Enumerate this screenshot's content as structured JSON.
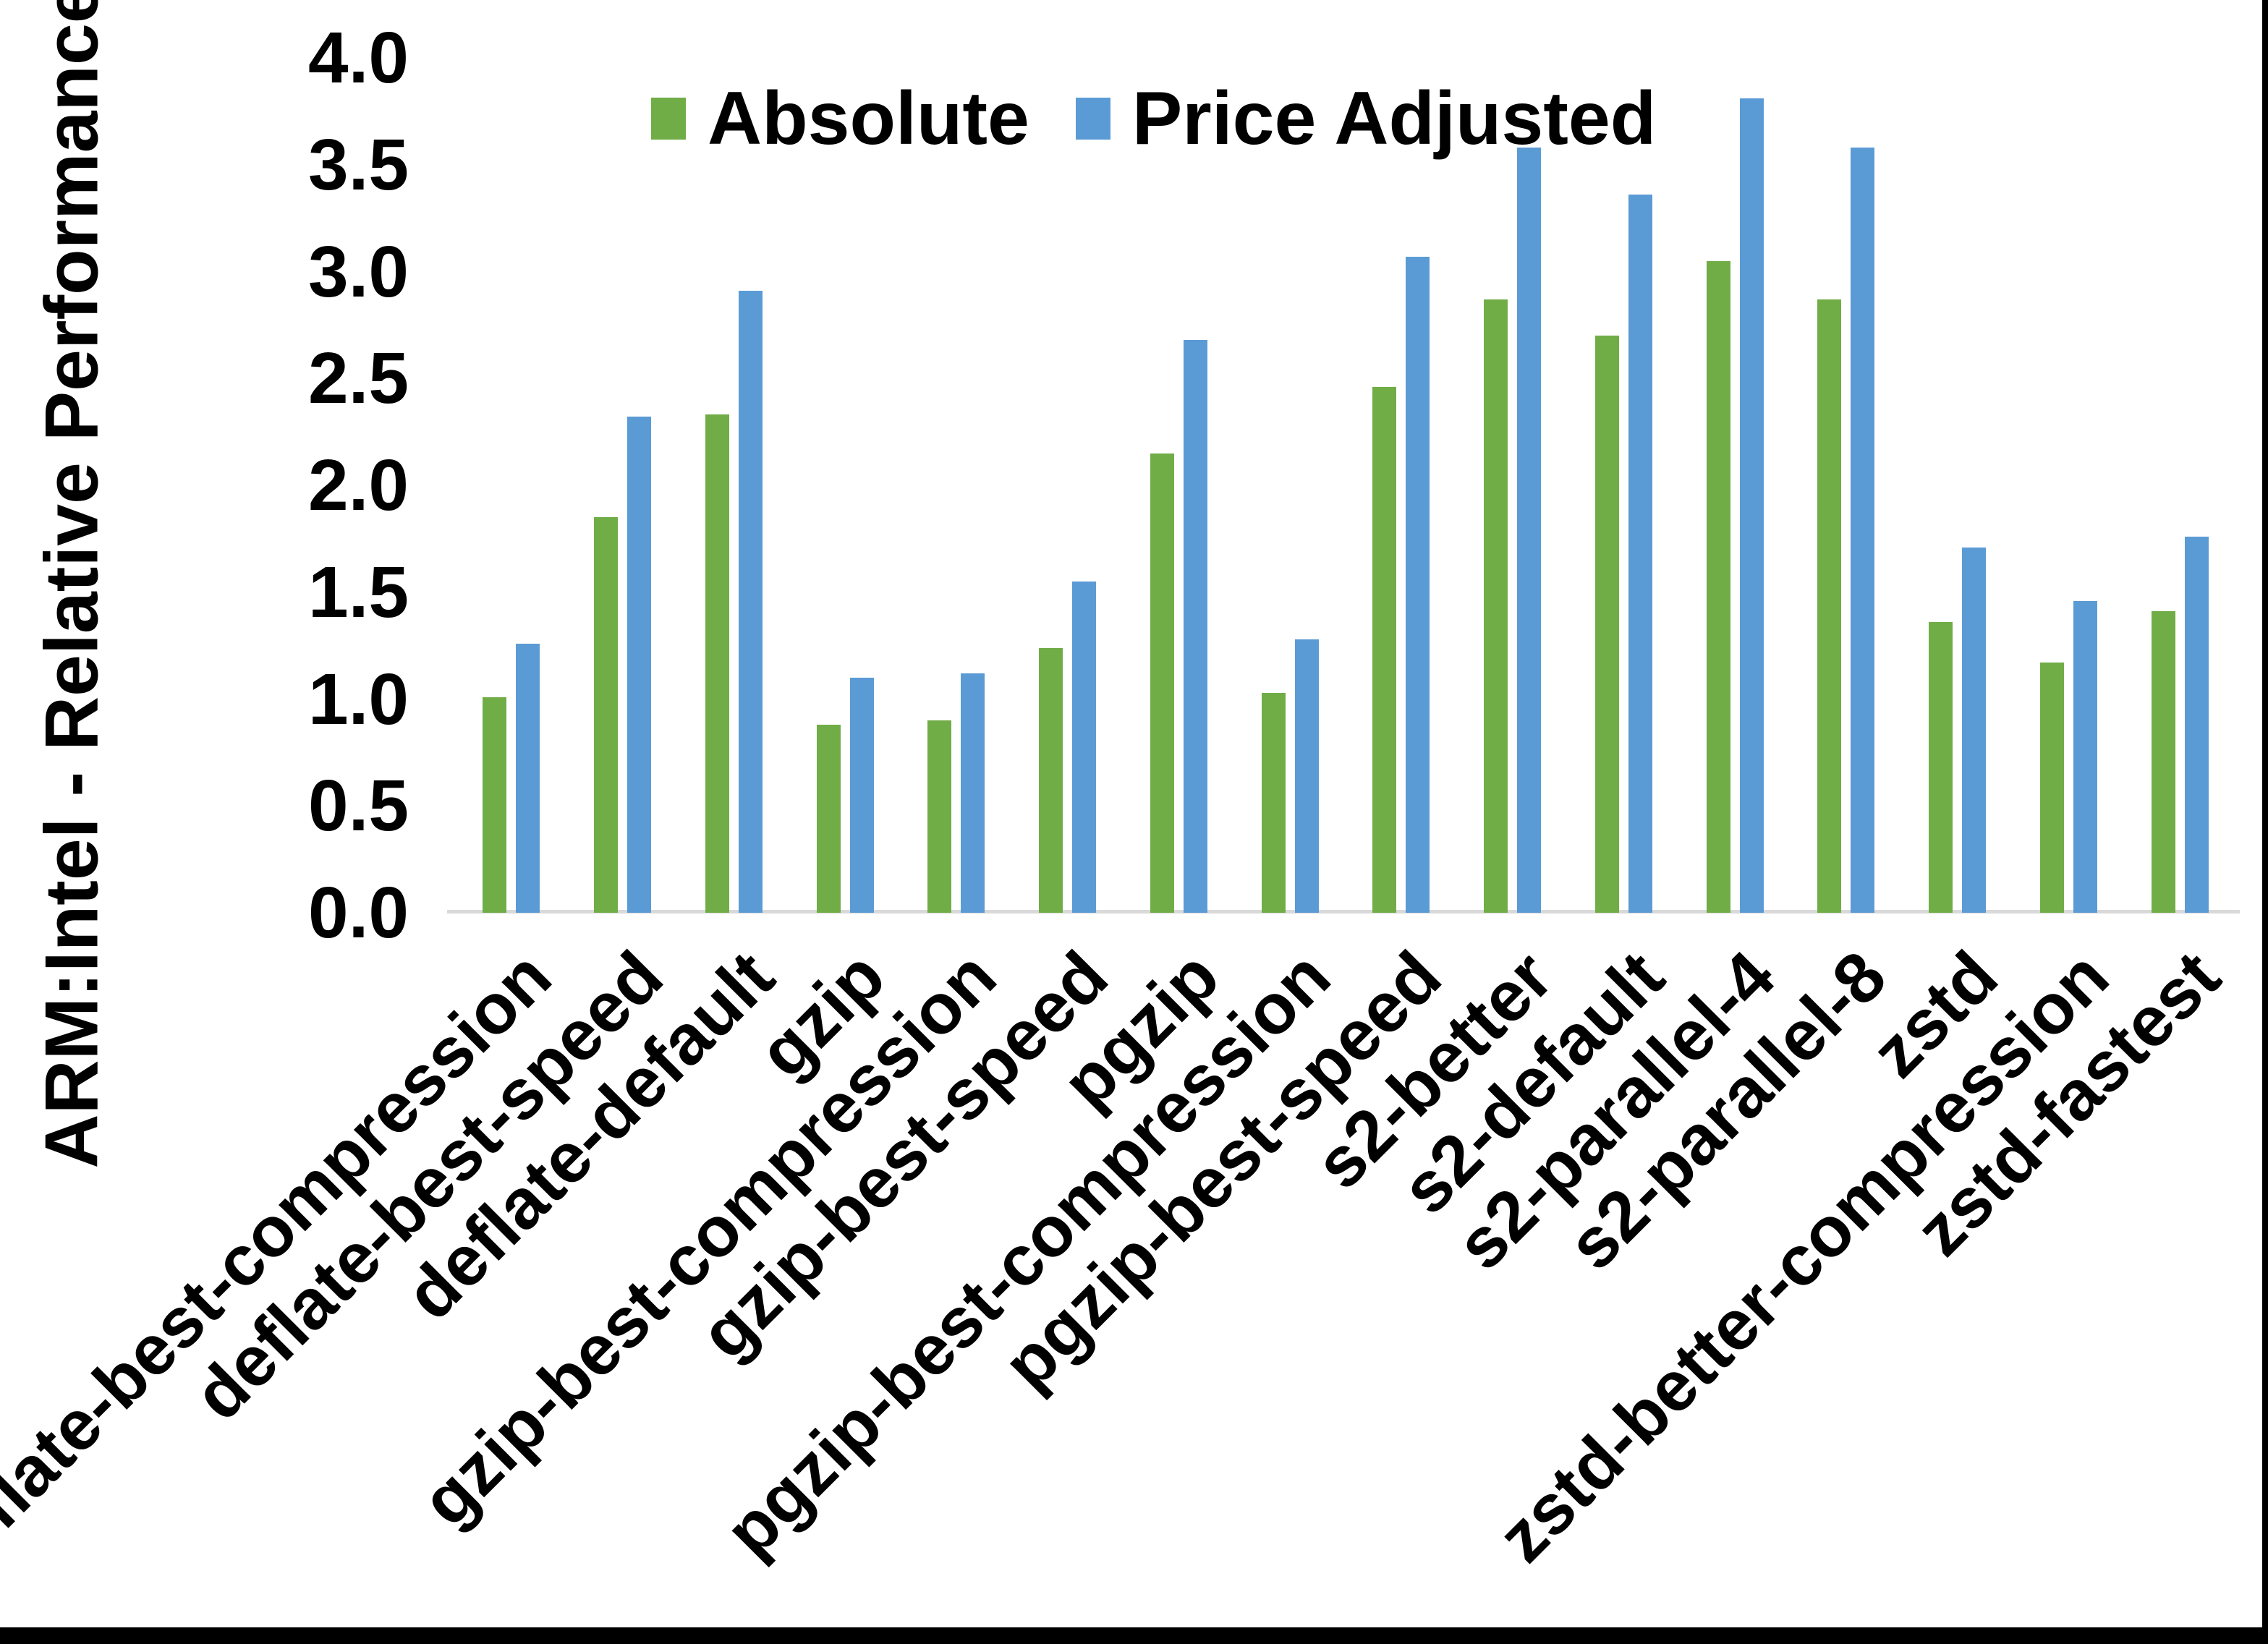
{
  "chart_data": {
    "type": "bar",
    "title": "",
    "xlabel": "",
    "ylabel": "ARM:Intel - Relative Performance",
    "ylim": [
      0.0,
      4.0
    ],
    "y_ticks": [
      "4.0",
      "3.5",
      "3.0",
      "2.5",
      "2.0",
      "1.5",
      "1.0",
      "0.5",
      "0.0"
    ],
    "grid": false,
    "legend_position": "top-center",
    "categories": [
      "deflate-best-compression",
      "deflate-best-speed",
      "deflate-default",
      "gzip",
      "gzip-best-compression",
      "gzip-best-speed",
      "pgzip",
      "pgzip-best-compression",
      "pgzip-best-speed",
      "s2-better",
      "s2-default",
      "s2-parallel-4",
      "s2-parallel-8",
      "zstd",
      "zstd-better-compression",
      "zstd-fastest"
    ],
    "series": [
      {
        "name": "Absolute",
        "color": "#70AD47",
        "values": [
          1.01,
          1.85,
          2.33,
          0.88,
          0.9,
          1.24,
          2.15,
          1.03,
          2.46,
          2.87,
          2.7,
          3.05,
          2.87,
          1.36,
          1.17,
          1.41
        ]
      },
      {
        "name": "Price Adjusted",
        "color": "#5B9BD5",
        "values": [
          1.26,
          2.32,
          2.91,
          1.1,
          1.12,
          1.55,
          2.68,
          1.28,
          3.07,
          3.58,
          3.36,
          3.81,
          3.58,
          1.71,
          1.46,
          1.76
        ]
      }
    ]
  },
  "legend": {
    "absolute_label": "Absolute",
    "price_adjusted_label": "Price Adjusted"
  },
  "axis": {
    "y_title": "ARM:Intel - Relative Performance"
  },
  "colors": {
    "absolute": "#70AD47",
    "price_adjusted": "#5B9BD5",
    "axis_line": "#D9D9D9",
    "page_border": "#000000"
  }
}
